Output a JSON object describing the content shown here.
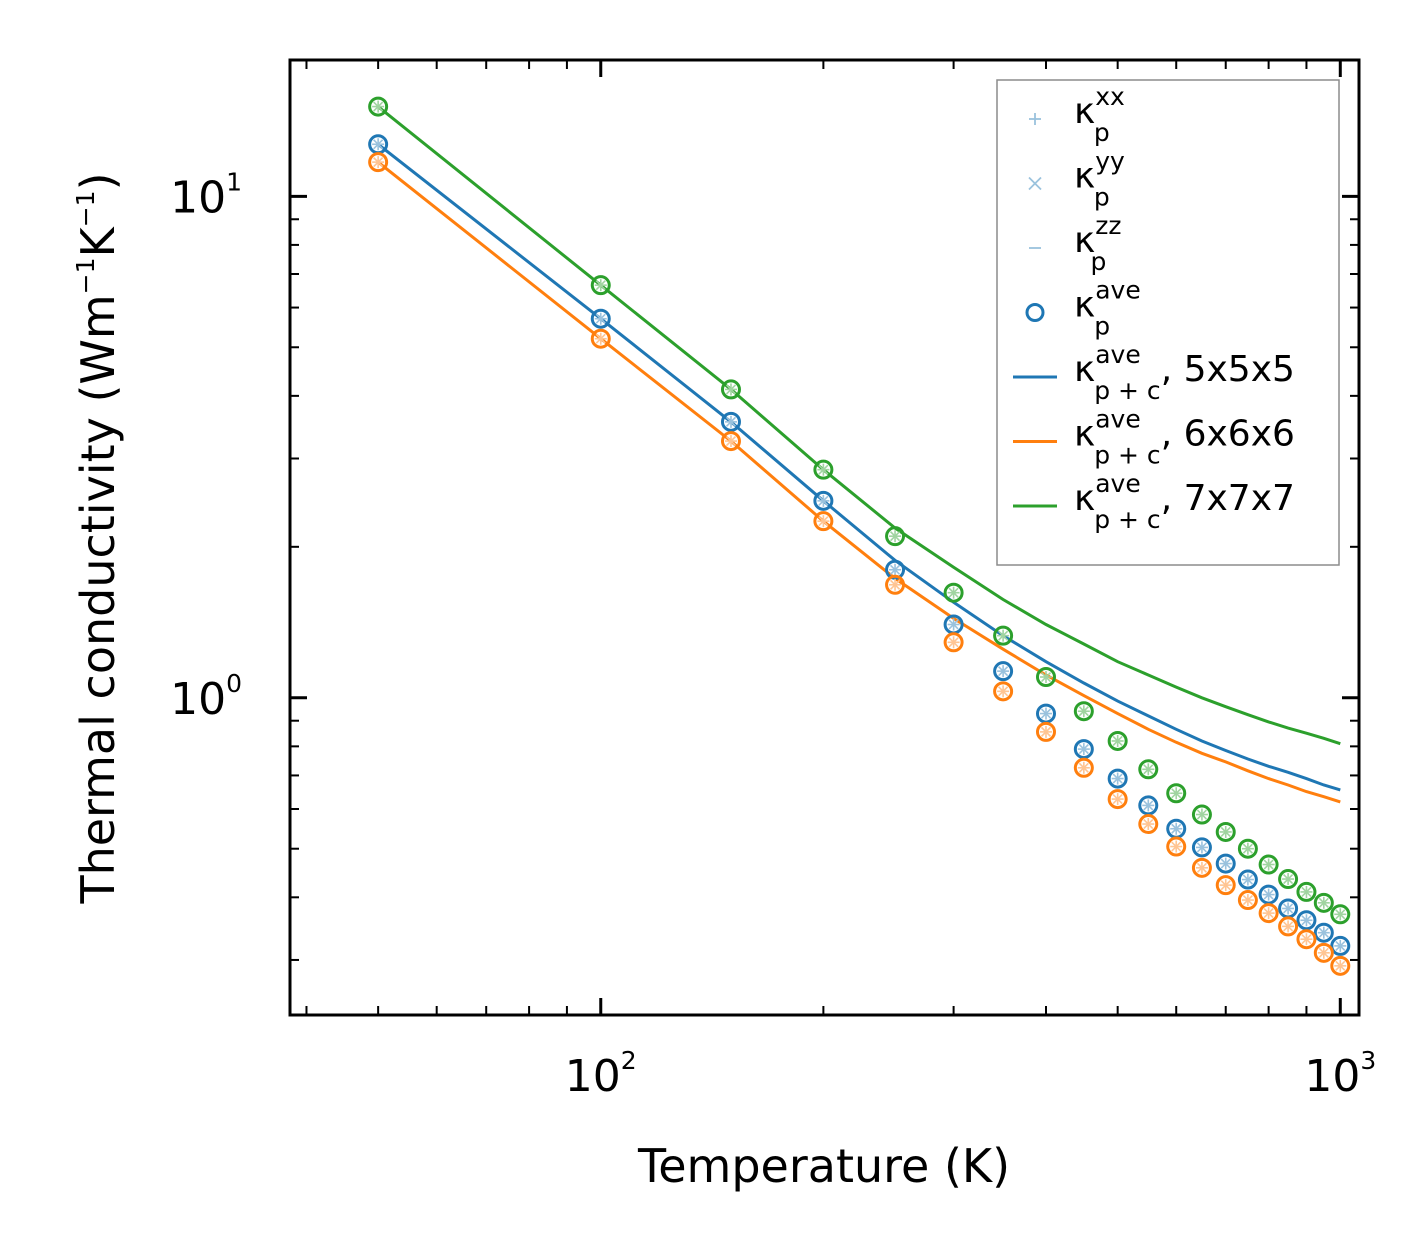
{
  "chart_data": {
    "type": "scatter",
    "xlabel": "Temperature (K)",
    "ylabel_main": "Thermal conductivity (Wm",
    "ylabel_parts": [
      "−1",
      "K",
      "−1",
      ")"
    ],
    "xscale": "log",
    "yscale": "log",
    "xlim": [
      38,
      1060
    ],
    "ylim": [
      0.233,
      18.7
    ],
    "x_ticks": [
      {
        "value": 100,
        "base": "10",
        "exp": "2"
      },
      {
        "value": 1000,
        "base": "10",
        "exp": "3"
      }
    ],
    "y_ticks": [
      {
        "value": 1,
        "base": "10",
        "exp": "0"
      },
      {
        "value": 10,
        "base": "10",
        "exp": "1"
      }
    ],
    "x": [
      50,
      100,
      150,
      200,
      250,
      300,
      350,
      400,
      450,
      500,
      550,
      600,
      650,
      700,
      750,
      800,
      850,
      900,
      950,
      1000
    ],
    "series": [
      {
        "name": "5x5x5",
        "color": "#1f77b4",
        "scatter_ave": [
          12.7,
          5.7,
          3.55,
          2.47,
          1.8,
          1.4,
          1.13,
          0.93,
          0.79,
          0.69,
          0.61,
          0.548,
          0.503,
          0.467,
          0.434,
          0.405,
          0.38,
          0.36,
          0.34,
          0.32
        ],
        "line_ave": [
          12.7,
          5.7,
          3.55,
          2.47,
          1.88,
          1.55,
          1.33,
          1.18,
          1.07,
          0.985,
          0.92,
          0.865,
          0.82,
          0.785,
          0.755,
          0.73,
          0.71,
          0.69,
          0.67,
          0.655
        ]
      },
      {
        "name": "6x6x6",
        "color": "#ff7f0e",
        "scatter_ave": [
          11.7,
          5.2,
          3.25,
          2.25,
          1.68,
          1.29,
          1.03,
          0.855,
          0.725,
          0.628,
          0.56,
          0.505,
          0.458,
          0.423,
          0.395,
          0.372,
          0.35,
          0.33,
          0.31,
          0.292
        ],
        "line_ave": [
          11.7,
          5.2,
          3.25,
          2.25,
          1.73,
          1.44,
          1.25,
          1.11,
          1.01,
          0.93,
          0.865,
          0.815,
          0.775,
          0.745,
          0.715,
          0.69,
          0.67,
          0.65,
          0.635,
          0.62
        ]
      },
      {
        "name": "7x7x7",
        "color": "#2ca02c",
        "scatter_ave": [
          15.1,
          6.65,
          4.12,
          2.85,
          2.1,
          1.62,
          1.33,
          1.1,
          0.94,
          0.82,
          0.72,
          0.645,
          0.585,
          0.54,
          0.5,
          0.465,
          0.435,
          0.41,
          0.39,
          0.37
        ],
        "line_ave": [
          15.1,
          6.65,
          4.12,
          2.85,
          2.18,
          1.82,
          1.57,
          1.4,
          1.28,
          1.18,
          1.11,
          1.05,
          1.0,
          0.96,
          0.925,
          0.895,
          0.87,
          0.85,
          0.83,
          0.81
        ]
      }
    ],
    "legend": {
      "position": "top-right",
      "entries": [
        {
          "marker": "+",
          "base": "κ",
          "sup": "xx",
          "sub": "p",
          "tail": ""
        },
        {
          "marker": "×",
          "base": "κ",
          "sup": "yy",
          "sub": "p",
          "tail": ""
        },
        {
          "marker": "−",
          "base": "κ",
          "sup": "zz",
          "sub": "p",
          "tail": ""
        },
        {
          "marker": "o",
          "base": "κ",
          "sup": "ave",
          "sub": "p",
          "tail": ""
        },
        {
          "marker": "line",
          "base": "κ",
          "sup": "ave",
          "sub": "p + c",
          "tail": ", 5x5x5"
        },
        {
          "marker": "line",
          "base": "κ",
          "sup": "ave",
          "sub": "p + c",
          "tail": ", 6x6x6"
        },
        {
          "marker": "line",
          "base": "κ",
          "sup": "ave",
          "sub": "p + c",
          "tail": ", 7x7x7"
        }
      ]
    }
  }
}
